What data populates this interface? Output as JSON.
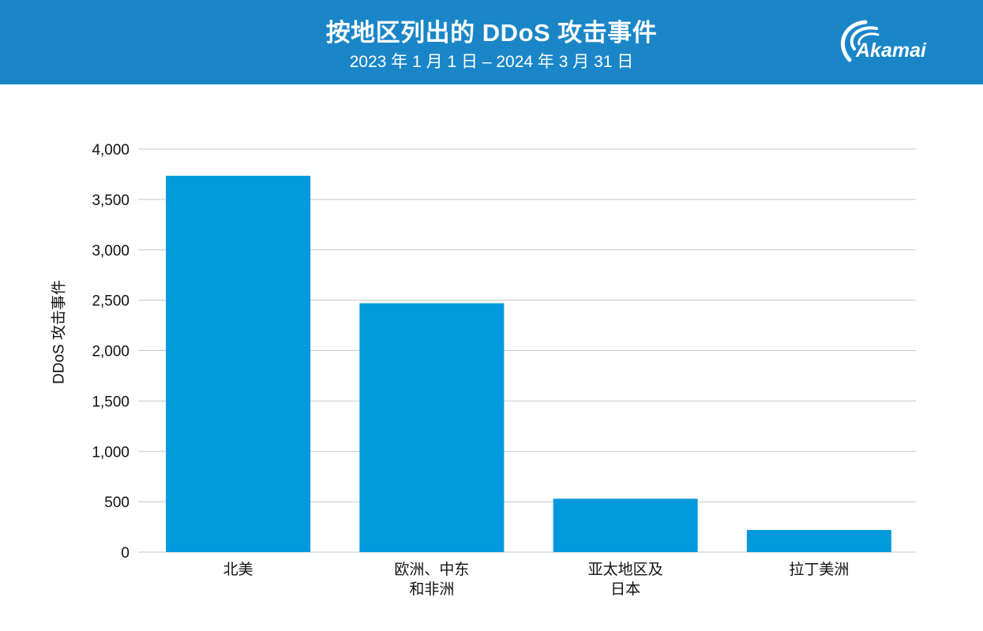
{
  "header": {
    "title": "按地区列出的 DDoS 攻击事件",
    "subtitle": "2023 年 1 月 1 日 – 2024 年 3 月 31 日",
    "logo_text": "Akamai",
    "background_color": "#1a86c8"
  },
  "chart_data": {
    "type": "bar",
    "title": "按地区列出的 DDoS 攻击事件",
    "subtitle": "2023 年 1 月 1 日 – 2024 年 3 月 31 日",
    "ylabel": "DDoS 攻击事件",
    "xlabel": "",
    "categories": [
      [
        "北美"
      ],
      [
        "欧洲、中东",
        "和非洲"
      ],
      [
        "亚太地区及",
        "日本"
      ],
      [
        "拉丁美洲"
      ]
    ],
    "values": [
      3735,
      2470,
      530,
      220
    ],
    "ylim": [
      0,
      4000
    ],
    "yticks": [
      "0",
      "500",
      "1,000",
      "1,500",
      "2,000",
      "2,500",
      "3,000",
      "3,500",
      "4,000"
    ],
    "grid": true,
    "bar_color": "#0099dc",
    "grid_color": "#c8c8c8"
  }
}
